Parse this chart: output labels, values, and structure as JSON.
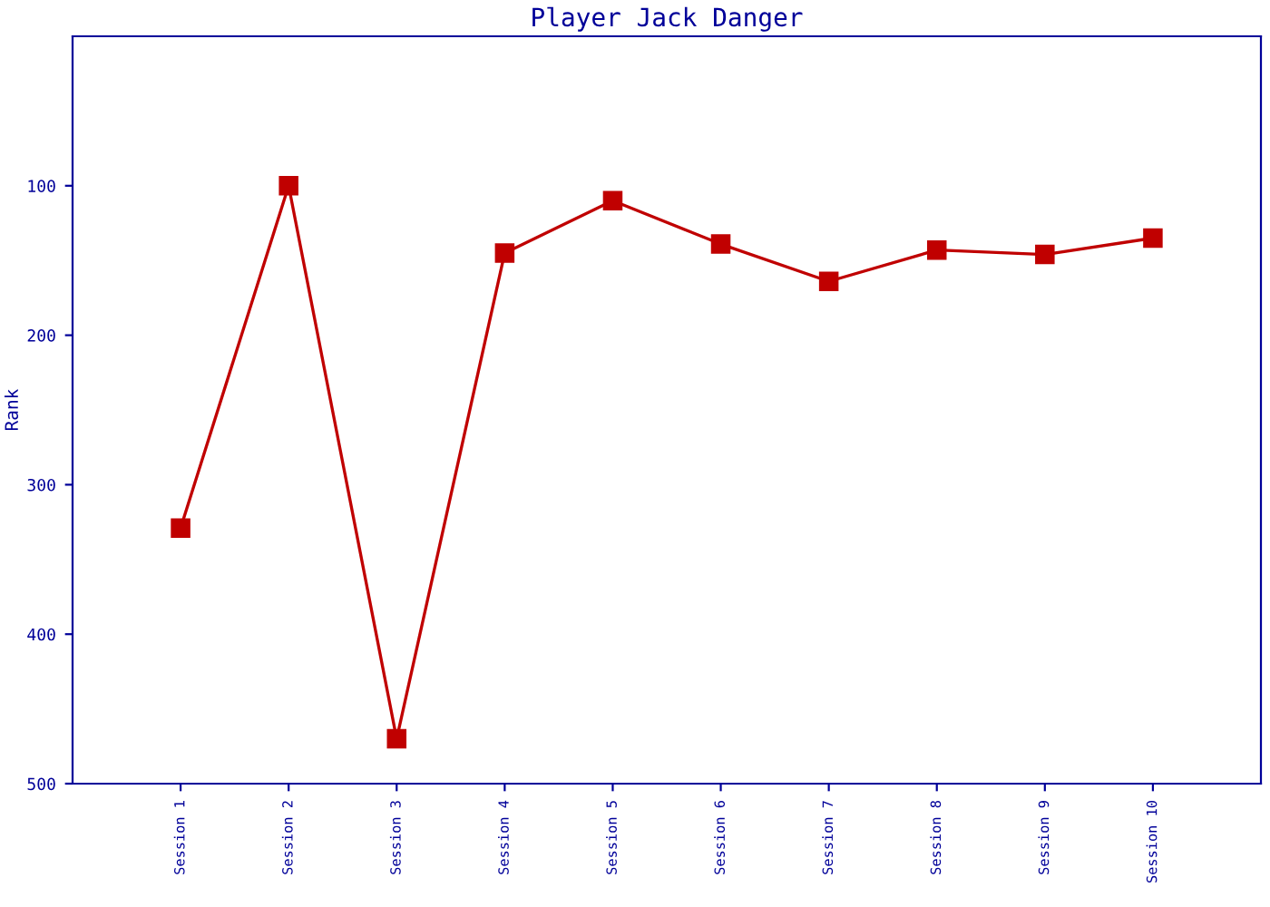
{
  "chart_data": {
    "type": "line",
    "title": "Player Jack Danger",
    "ylabel": "Rank",
    "categories": [
      "Session 1",
      "Session 2",
      "Session 3",
      "Session 4",
      "Session 5",
      "Session 6",
      "Session 7",
      "Session 8",
      "Session 9",
      "Session 10"
    ],
    "series": [
      {
        "color": "#c00000",
        "values": [
          329,
          100,
          470,
          145,
          110,
          139,
          164,
          143,
          146,
          135
        ]
      }
    ],
    "ylim": [
      500,
      0
    ],
    "yticks": [
      100,
      200,
      300,
      400,
      500
    ],
    "grid": false,
    "legend": false,
    "marker": "square",
    "line_style": "solid"
  }
}
